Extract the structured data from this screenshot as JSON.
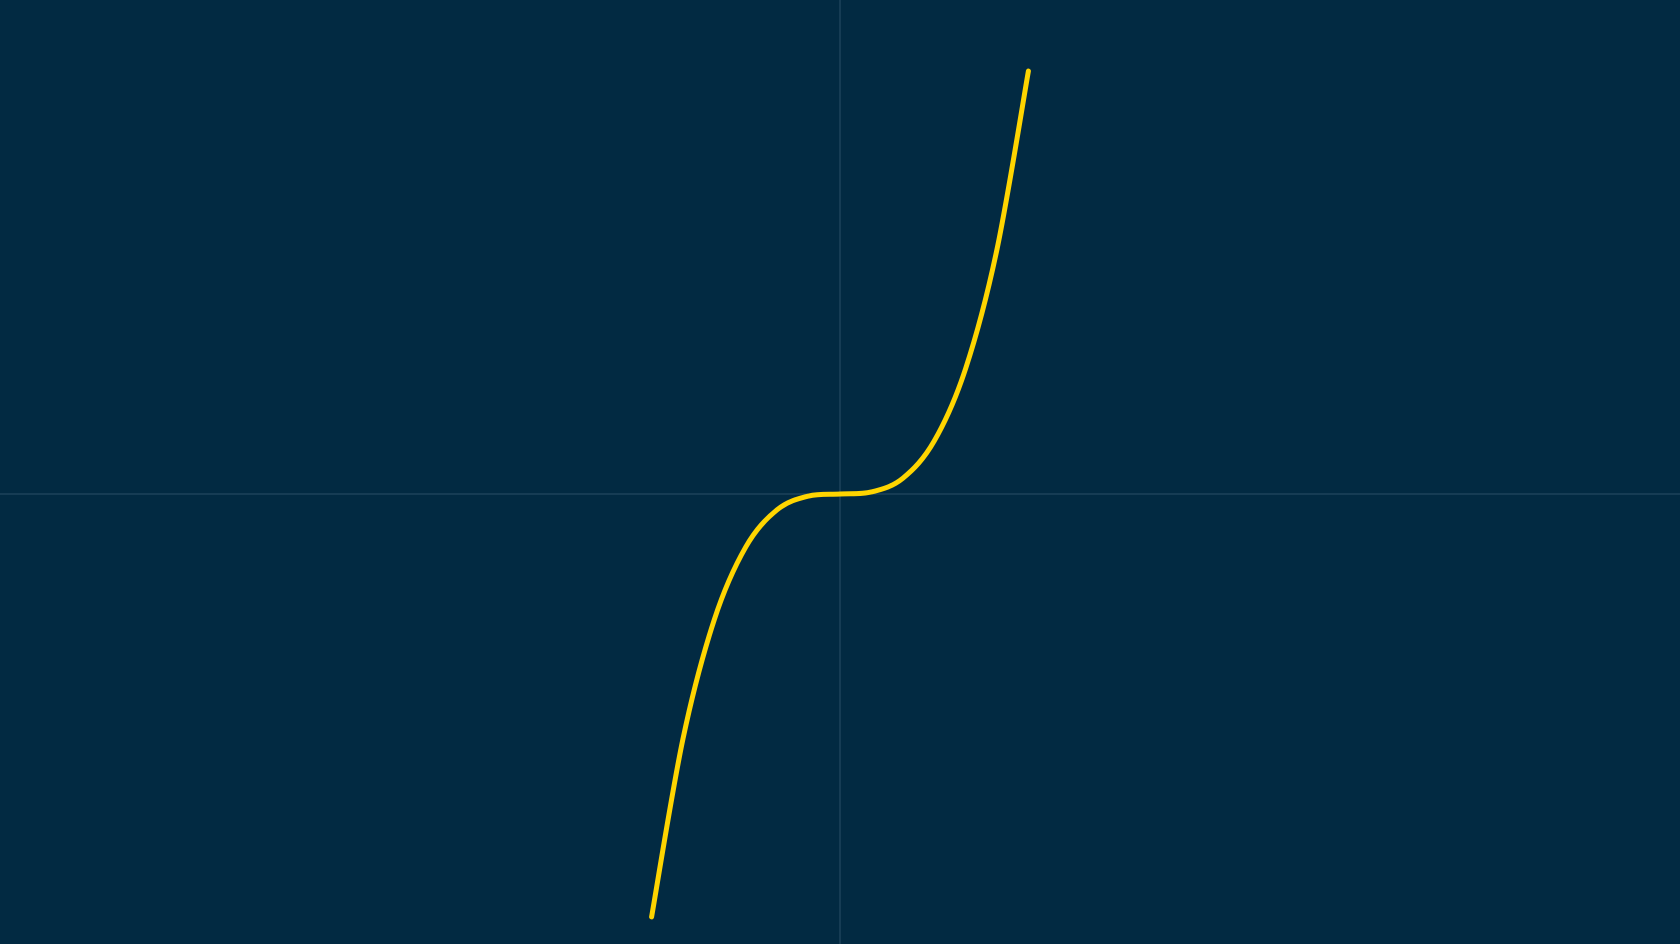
{
  "colors": {
    "background": "#022a42",
    "axis": "#2a4f66",
    "curve": "#ffd500"
  },
  "chart_data": {
    "type": "line",
    "title": "",
    "xlabel": "",
    "ylabel": "",
    "grid": false,
    "legend": "none",
    "xlim": [
      -5.35,
      5.35
    ],
    "ylim": [
      -2.66,
      2.92
    ],
    "series": [
      {
        "x": [
          -1.2,
          -1.0,
          -0.8,
          -0.6,
          -0.4,
          -0.2,
          0.0,
          0.2,
          0.4,
          0.6,
          0.8,
          1.0,
          1.2
        ],
        "y": [
          -2.5,
          -1.447,
          -0.741,
          -0.313,
          -0.093,
          -0.012,
          0.0,
          0.012,
          0.093,
          0.313,
          0.741,
          1.447,
          2.5
        ]
      }
    ]
  }
}
